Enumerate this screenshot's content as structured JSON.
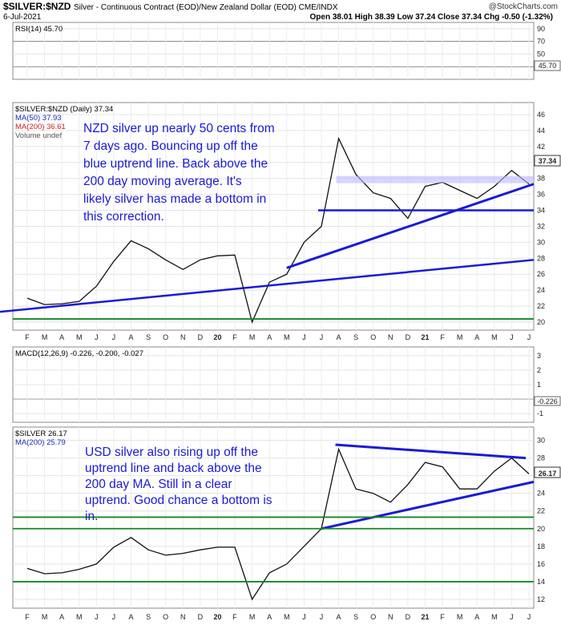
{
  "header": {
    "ticker": "$SILVER:$NZD",
    "description": "Silver - Continuous Contract (EOD)/New Zealand Dollar (EOD) CME/INDX",
    "brand": "@StockCharts.com",
    "date": "6-Jul-2021",
    "ohlc": "Open 38.01  High 38.39  Low 37.24  Close 37.34  Chg -0.50 (-1.32%)"
  },
  "x_axis_labels": [
    "F",
    "M",
    "A",
    "M",
    "J",
    "J",
    "A",
    "S",
    "O",
    "N",
    "D",
    "20",
    "F",
    "M",
    "A",
    "M",
    "J",
    "J",
    "A",
    "S",
    "O",
    "N",
    "D",
    "21",
    "F",
    "M",
    "A",
    "M",
    "J",
    "J"
  ],
  "chart_data": [
    {
      "id": "rsi",
      "type": "line",
      "title": "RSI(14) 45.70",
      "y_ticks": [
        30,
        50,
        70,
        90
      ],
      "ylim": [
        10,
        100
      ],
      "reference_lines": [
        30,
        70
      ],
      "last_value_label": "45.70"
    },
    {
      "id": "nzd",
      "type": "line",
      "legend": [
        "$SILVER:$NZD (Daily) 37.34",
        "MA(50) 37.93",
        "MA(200) 36.61",
        "Volume undef"
      ],
      "series": [
        {
          "name": "$SILVER:$NZD (Daily) 37.34",
          "values": [
            23.0,
            22.2,
            22.3,
            22.6,
            24.5,
            27.6,
            30.2,
            29.2,
            27.8,
            26.6,
            27.8,
            28.3,
            28.4,
            20.0,
            25.0,
            26.0,
            30.0,
            32.0,
            43.0,
            38.5,
            36.2,
            35.5,
            33.0,
            37.0,
            37.5,
            36.5,
            35.5,
            37.0,
            39.0,
            37.3
          ]
        }
      ],
      "y_ticks": [
        20,
        22,
        24,
        26,
        28,
        30,
        32,
        34,
        36,
        38,
        40,
        42,
        44,
        46
      ],
      "ylim": [
        19,
        47.5
      ],
      "last_value_label": "37.34",
      "annotation": "NZD silver up nearly 50 cents from 7 days ago. Bouncing up off the blue uptrend line. Back above the 200 day moving average. It's likely silver has made a bottom in this correction."
    },
    {
      "id": "macd",
      "type": "line",
      "legend": "MACD(12,26,9) -0.226, -0.200, -0.027",
      "y_ticks": [
        -1,
        0,
        1,
        2,
        3
      ],
      "ylim": [
        -1.6,
        3.6
      ],
      "last_value_label": "-0.226"
    },
    {
      "id": "usd",
      "type": "line",
      "legend": [
        "$SILVER 26.17",
        "MA(200) 25.79"
      ],
      "series": [
        {
          "name": "$SILVER 26.17",
          "values": [
            15.5,
            14.9,
            15.0,
            15.4,
            16.0,
            17.9,
            19.0,
            17.6,
            17.0,
            17.2,
            17.6,
            17.9,
            17.9,
            12.0,
            15.0,
            16.0,
            18.0,
            20.0,
            29.0,
            24.5,
            24.0,
            23.0,
            25.0,
            27.5,
            27.0,
            24.5,
            24.5,
            26.5,
            28.0,
            26.2
          ]
        }
      ],
      "y_ticks": [
        12,
        14,
        16,
        18,
        20,
        22,
        24,
        26,
        28,
        30
      ],
      "ylim": [
        11,
        31.5
      ],
      "last_value_label": "26.17",
      "annotation": "USD silver also rising up off the uptrend line and back above the 200 day MA. Still in a clear uptrend. Good chance a bottom is in."
    }
  ]
}
